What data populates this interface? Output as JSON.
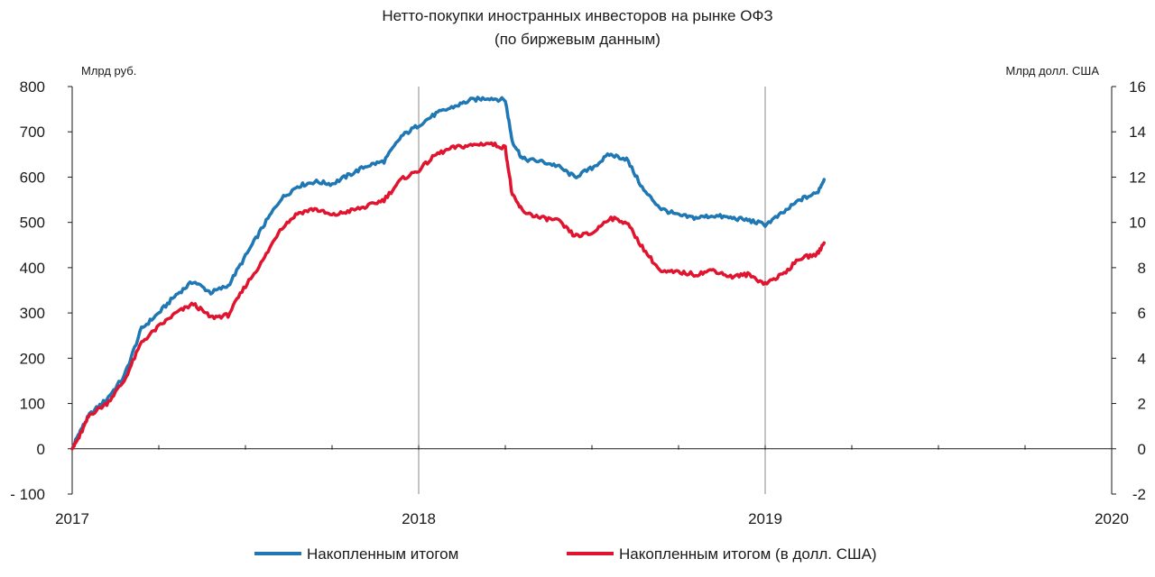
{
  "chart_data": {
    "type": "line",
    "title": "Нетто-покупки иностранных инвесторов на рынке ОФЗ",
    "subtitle": "(по биржевым данным)",
    "y_left_unit": "Млрд руб.",
    "y_right_unit": "Млрд долл. США",
    "x_ticks": [
      "2017",
      "2018",
      "2019",
      "2020"
    ],
    "x_range": [
      2017.0,
      2020.0
    ],
    "y_left_ticks": [
      "800",
      "700",
      "600",
      "500",
      "400",
      "300",
      "200",
      "100",
      "0",
      "- 100"
    ],
    "y_left_range": [
      -100,
      800
    ],
    "y_right_ticks": [
      "16",
      "14",
      "12",
      "10",
      "8",
      "6",
      "4",
      "2",
      "0",
      "-2"
    ],
    "y_right_range": [
      -2,
      16
    ],
    "grid": "vertical lines at year boundaries",
    "legend_position": "bottom",
    "legend": [
      "Накопленным итогом",
      "Накопленным итогом (в долл. США)"
    ],
    "colors": {
      "series_rub": "#1f77b4",
      "series_usd": "#e0142f",
      "axis": "#1a1a1a",
      "grid": "#888888"
    },
    "series": [
      {
        "name": "Накопленным итогом",
        "axis": "left",
        "x": [
          2017.0,
          2017.02,
          2017.05,
          2017.1,
          2017.15,
          2017.2,
          2017.25,
          2017.3,
          2017.35,
          2017.4,
          2017.45,
          2017.5,
          2017.55,
          2017.6,
          2017.65,
          2017.7,
          2017.75,
          2017.8,
          2017.85,
          2017.9,
          2017.95,
          2018.0,
          2018.05,
          2018.1,
          2018.15,
          2018.2,
          2018.25,
          2018.27,
          2018.3,
          2018.35,
          2018.4,
          2018.45,
          2018.5,
          2018.55,
          2018.6,
          2018.65,
          2018.7,
          2018.75,
          2018.8,
          2018.85,
          2018.9,
          2018.95,
          2019.0,
          2019.05,
          2019.1,
          2019.15,
          2019.17
        ],
        "values": [
          0,
          35,
          75,
          110,
          160,
          265,
          300,
          340,
          370,
          345,
          360,
          425,
          490,
          550,
          580,
          590,
          585,
          605,
          625,
          635,
          690,
          715,
          740,
          755,
          770,
          775,
          770,
          680,
          640,
          635,
          625,
          600,
          620,
          650,
          640,
          570,
          530,
          515,
          510,
          515,
          510,
          505,
          495,
          520,
          550,
          565,
          595
        ]
      },
      {
        "name": "Накопленным итогом (в долл. США)",
        "axis": "right",
        "x": [
          2017.0,
          2017.02,
          2017.05,
          2017.1,
          2017.15,
          2017.2,
          2017.25,
          2017.3,
          2017.35,
          2017.4,
          2017.45,
          2017.5,
          2017.55,
          2017.6,
          2017.65,
          2017.7,
          2017.75,
          2017.8,
          2017.85,
          2017.9,
          2017.95,
          2018.0,
          2018.05,
          2018.1,
          2018.15,
          2018.2,
          2018.25,
          2018.27,
          2018.3,
          2018.35,
          2018.4,
          2018.45,
          2018.5,
          2018.55,
          2018.6,
          2018.65,
          2018.7,
          2018.75,
          2018.8,
          2018.85,
          2018.9,
          2018.95,
          2019.0,
          2019.05,
          2019.1,
          2019.15,
          2019.17
        ],
        "values": [
          0,
          0.5,
          1.5,
          2.0,
          3.0,
          4.7,
          5.4,
          6.0,
          6.4,
          5.8,
          5.9,
          7.2,
          8.3,
          9.7,
          10.4,
          10.6,
          10.3,
          10.5,
          10.7,
          11.0,
          11.9,
          12.3,
          13.0,
          13.3,
          13.4,
          13.5,
          13.3,
          11.2,
          10.5,
          10.2,
          10.1,
          9.4,
          9.5,
          10.2,
          10.0,
          8.8,
          7.8,
          7.8,
          7.7,
          7.9,
          7.6,
          7.7,
          7.3,
          7.7,
          8.4,
          8.6,
          9.1
        ]
      }
    ]
  }
}
